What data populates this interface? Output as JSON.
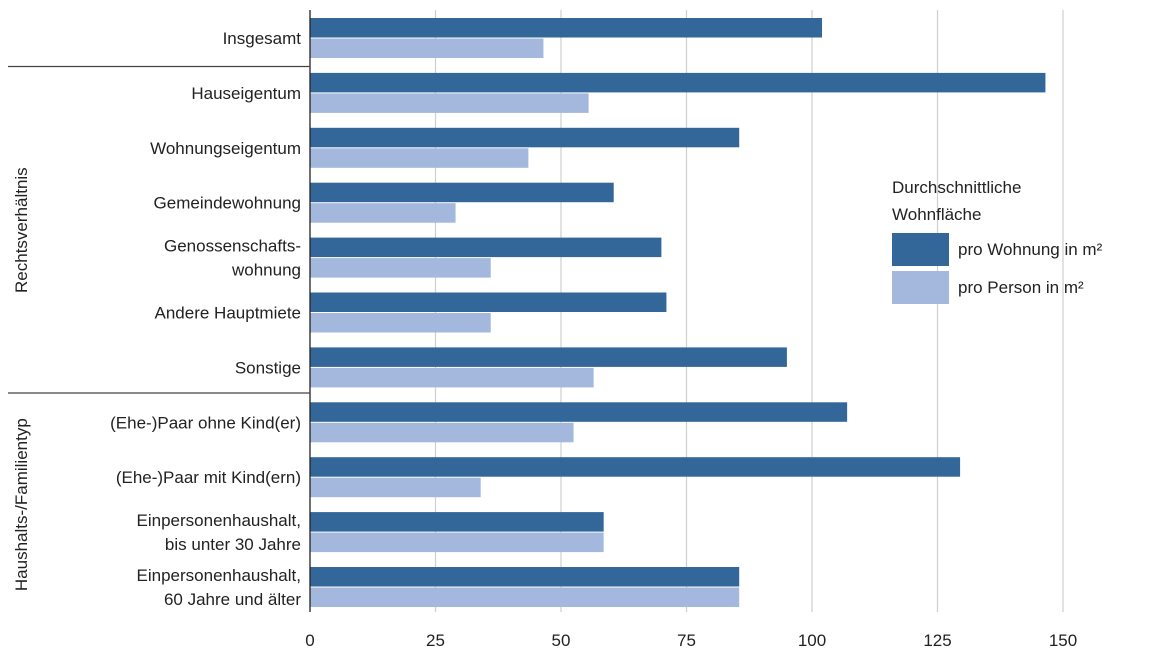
{
  "chart_data": {
    "type": "bar",
    "orientation": "horizontal",
    "categories": [
      [
        "Insgesamt"
      ],
      [
        "Hauseigentum"
      ],
      [
        "Wohnungseigentum"
      ],
      [
        "Gemeindewohnung"
      ],
      [
        "Genossenschafts-",
        "wohnung"
      ],
      [
        "Andere Hauptmiete"
      ],
      [
        "Sonstige"
      ],
      [
        "(Ehe-)Paar ohne Kind(er)"
      ],
      [
        "(Ehe-)Paar mit Kind(ern)"
      ],
      [
        "Einpersonenhaushalt,",
        "bis unter 30 Jahre"
      ],
      [
        "Einpersonenhaushalt,",
        "60 Jahre und älter"
      ]
    ],
    "series": [
      {
        "name": "pro Wohnung in m²",
        "color": "#336699",
        "values": [
          102,
          146.5,
          85.5,
          60.5,
          70,
          71,
          95,
          107,
          129.5,
          58.5,
          85.5
        ]
      },
      {
        "name": "pro Person in m²",
        "color": "#a3b8dc",
        "values": [
          46.5,
          55.5,
          43.5,
          29,
          36,
          36,
          56.5,
          52.5,
          34,
          58.5,
          85.5
        ]
      }
    ],
    "groups": [
      {
        "label": "Rechtsverhältnis",
        "from": 1,
        "to": 6
      },
      {
        "label": "Haushalts-/Familientyp",
        "from": 7,
        "to": 10
      }
    ],
    "xticks": [
      "0",
      "25",
      "50",
      "75",
      "100",
      "125",
      "150"
    ],
    "xlim": [
      0,
      150
    ],
    "grid": true,
    "legend": {
      "title": [
        "Durchschnittliche",
        "Wohnfläche"
      ],
      "placement": "right"
    }
  }
}
